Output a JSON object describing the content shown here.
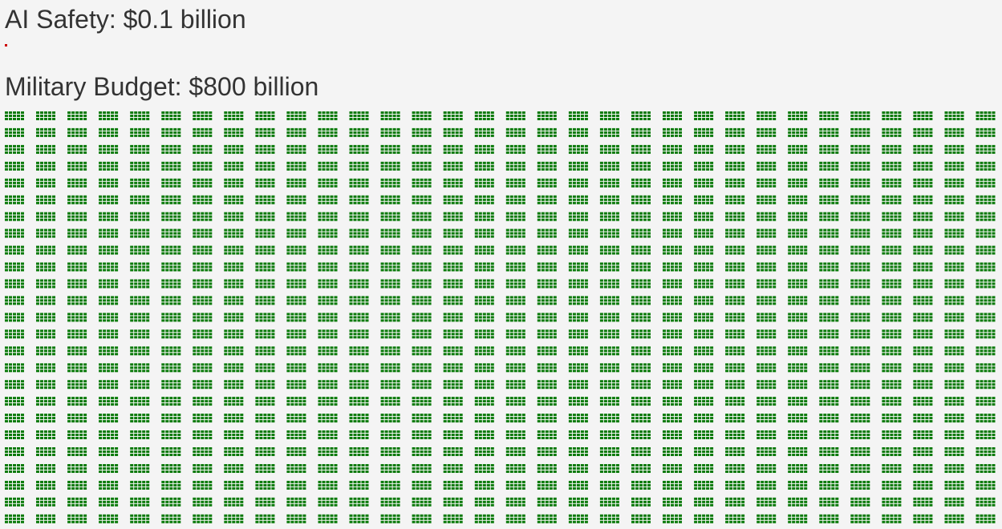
{
  "chart_data": {
    "type": "unit-grid",
    "series": [
      {
        "title": "AI Safety: $0.1 billion",
        "value_billion": 0.1,
        "color": "#cc0000"
      },
      {
        "title": "Military Budget: $800 billion",
        "value_billion": 800,
        "color": "#0a7a0a"
      }
    ]
  }
}
